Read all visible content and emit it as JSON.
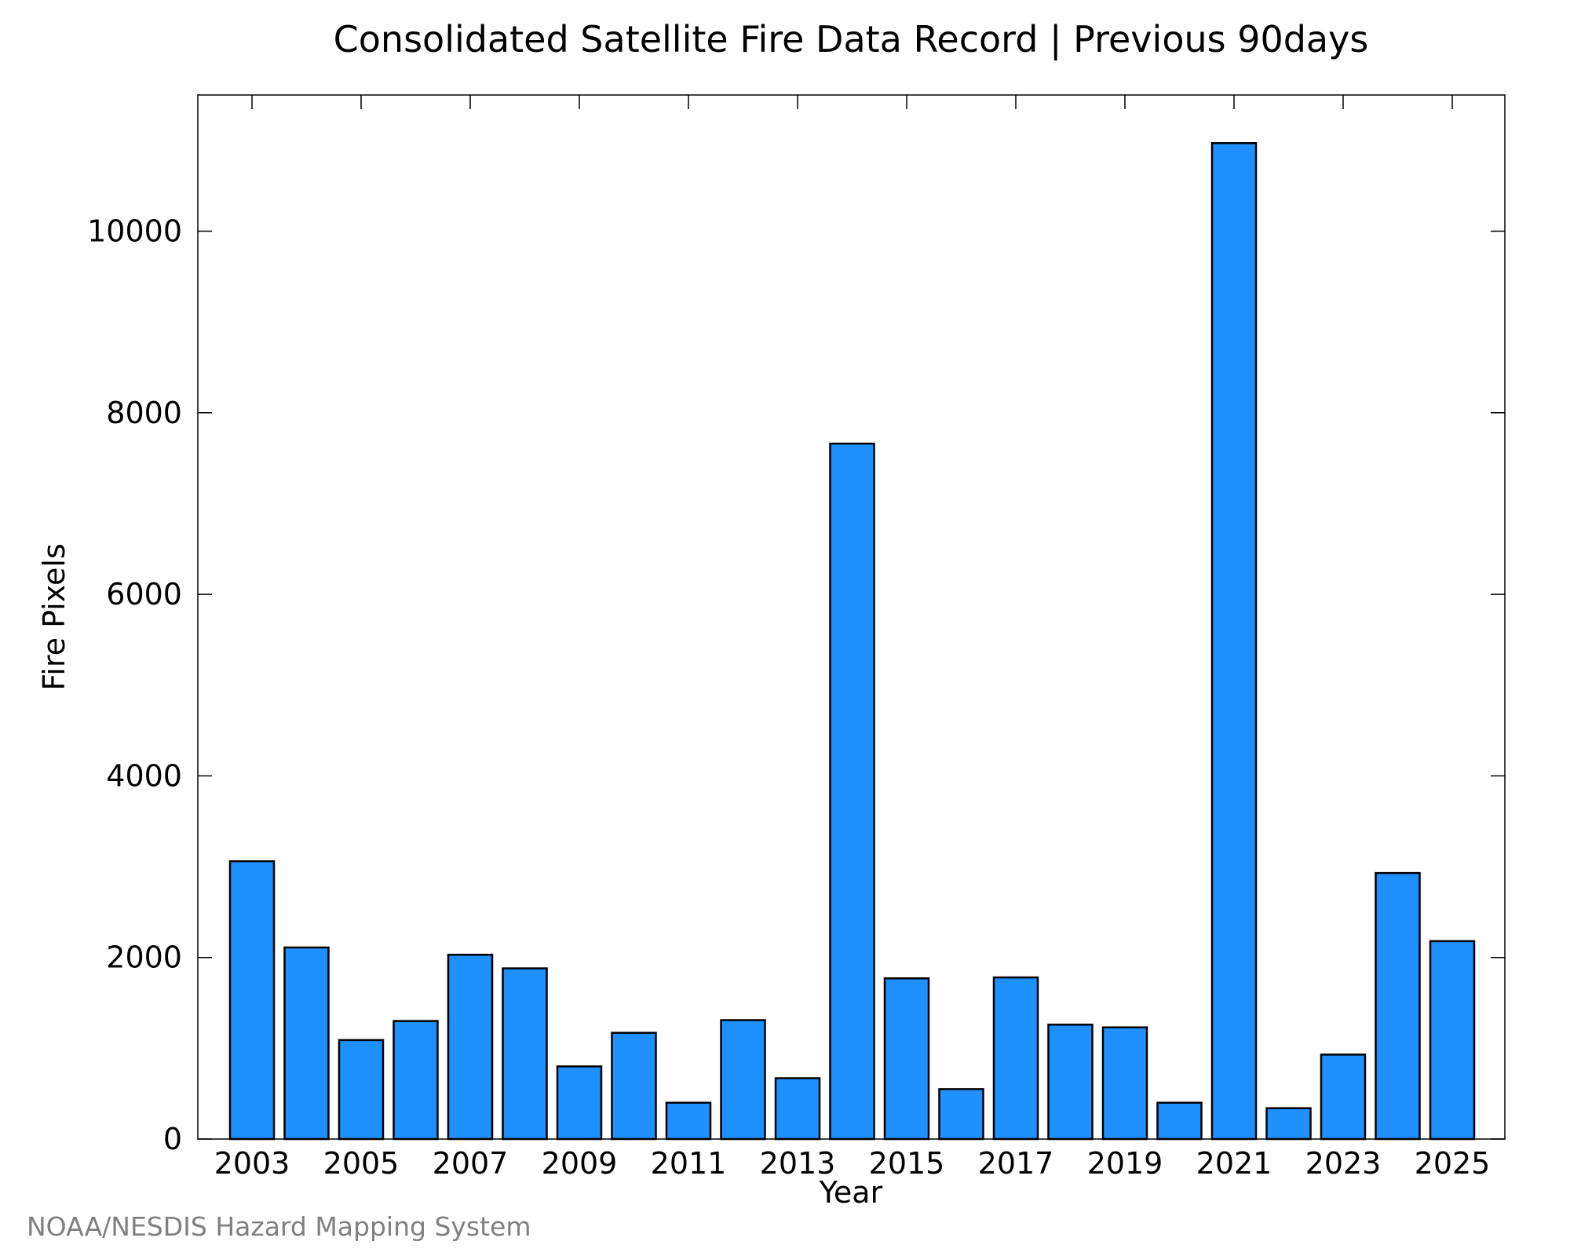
{
  "chart_data": {
    "type": "bar",
    "title": "Consolidated Satellite Fire Data Record | Previous 90days",
    "xlabel": "Year",
    "ylabel": "Fire Pixels",
    "categories": [
      "2003",
      "2004",
      "2005",
      "2006",
      "2007",
      "2008",
      "2009",
      "2010",
      "2011",
      "2012",
      "2013",
      "2014",
      "2015",
      "2016",
      "2017",
      "2018",
      "2019",
      "2020",
      "2021",
      "2022",
      "2023",
      "2024",
      "2025"
    ],
    "values": [
      3060,
      2110,
      1090,
      1300,
      2030,
      1880,
      800,
      1170,
      400,
      1310,
      670,
      7660,
      1770,
      550,
      1780,
      1260,
      1230,
      400,
      10970,
      340,
      930,
      2930,
      2180
    ],
    "xtick_labels": [
      "2003",
      "2005",
      "2007",
      "2009",
      "2011",
      "2013",
      "2015",
      "2017",
      "2019",
      "2021",
      "2023",
      "2025"
    ],
    "yticks": [
      0,
      2000,
      4000,
      6000,
      8000,
      10000
    ],
    "ytick_labels": [
      "0",
      "2000",
      "4000",
      "6000",
      "8000",
      "10000"
    ],
    "ylim": [
      0,
      11500
    ],
    "bar_color": "#1e90ff",
    "bar_edge_color": "#000000",
    "grid": false,
    "legend": "none"
  },
  "footer": {
    "credit": "NOAA/NESDIS Hazard Mapping System"
  }
}
